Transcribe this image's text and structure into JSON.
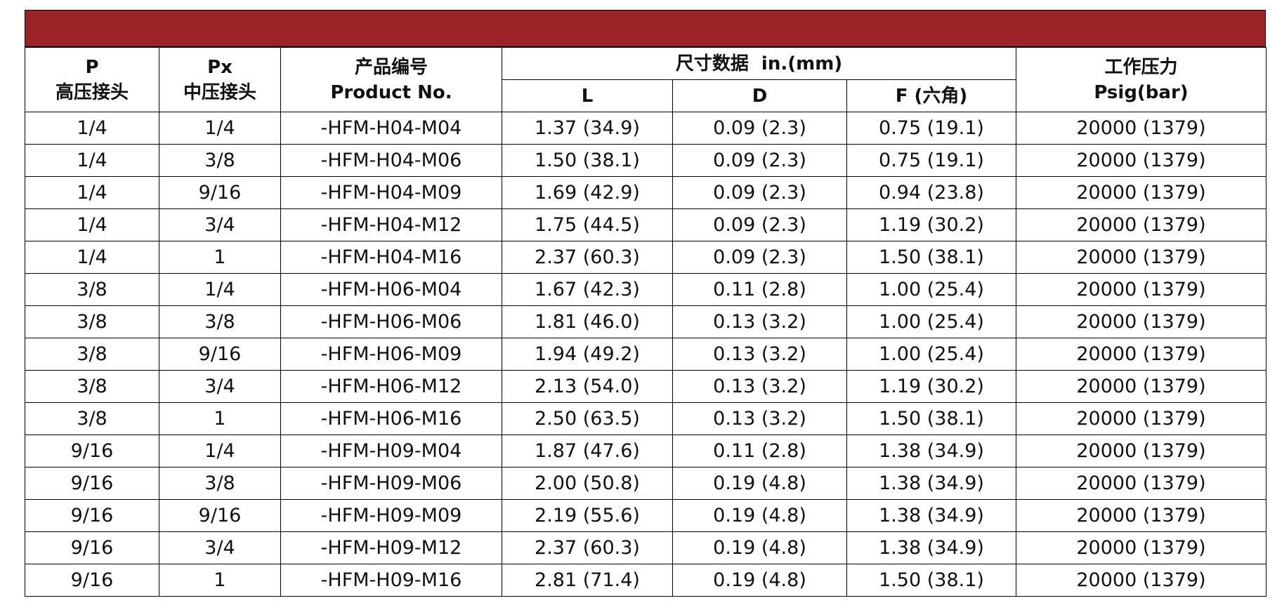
{
  "header": {
    "p": [
      "P",
      "高压接头"
    ],
    "px": [
      "Px",
      "中压接头"
    ],
    "product_no": [
      "产品编号",
      "Product No."
    ],
    "dimensions": "尺寸数据  in.(mm)",
    "dimension_columns": [
      "L",
      "D",
      "F (六角)"
    ],
    "pressure": [
      "工作压力",
      "Psig(bar)"
    ]
  },
  "rows": [
    [
      "1/4",
      "1/4",
      "-HFM-H04-M04",
      "1.37 (34.9)",
      "0.09 (2.3)",
      "0.75 (19.1)",
      "20000 (1379)"
    ],
    [
      "1/4",
      "3/8",
      "-HFM-H04-M06",
      "1.50 (38.1)",
      "0.09 (2.3)",
      "0.75 (19.1)",
      "20000 (1379)"
    ],
    [
      "1/4",
      "9/16",
      "-HFM-H04-M09",
      "1.69 (42.9)",
      "0.09 (2.3)",
      "0.94 (23.8)",
      "20000 (1379)"
    ],
    [
      "1/4",
      "3/4",
      "-HFM-H04-M12",
      "1.75 (44.5)",
      "0.09 (2.3)",
      "1.19 (30.2)",
      "20000 (1379)"
    ],
    [
      "1/4",
      "1",
      "-HFM-H04-M16",
      "2.37 (60.3)",
      "0.09 (2.3)",
      "1.50 (38.1)",
      "20000 (1379)"
    ],
    [
      "3/8",
      "1/4",
      "-HFM-H06-M04",
      "1.67 (42.3)",
      "0.11 (2.8)",
      "1.00 (25.4)",
      "20000 (1379)"
    ],
    [
      "3/8",
      "3/8",
      "-HFM-H06-M06",
      "1.81 (46.0)",
      "0.13 (3.2)",
      "1.00 (25.4)",
      "20000 (1379)"
    ],
    [
      "3/8",
      "9/16",
      "-HFM-H06-M09",
      "1.94 (49.2)",
      "0.13 (3.2)",
      "1.00 (25.4)",
      "20000 (1379)"
    ],
    [
      "3/8",
      "3/4",
      "-HFM-H06-M12",
      "2.13 (54.0)",
      "0.13 (3.2)",
      "1.19 (30.2)",
      "20000 (1379)"
    ],
    [
      "3/8",
      "1",
      "-HFM-H06-M16",
      "2.50 (63.5)",
      "0.13 (3.2)",
      "1.50 (38.1)",
      "20000 (1379)"
    ],
    [
      "9/16",
      "1/4",
      "-HFM-H09-M04",
      "1.87 (47.6)",
      "0.11 (2.8)",
      "1.38 (34.9)",
      "20000 (1379)"
    ],
    [
      "9/16",
      "3/8",
      "-HFM-H09-M06",
      "2.00 (50.8)",
      "0.19 (4.8)",
      "1.38 (34.9)",
      "20000 (1379)"
    ],
    [
      "9/16",
      "9/16",
      "-HFM-H09-M09",
      "2.19 (55.6)",
      "0.19 (4.8)",
      "1.38 (34.9)",
      "20000 (1379)"
    ],
    [
      "9/16",
      "3/4",
      "-HFM-H09-M12",
      "2.37 (60.3)",
      "0.19 (4.8)",
      "1.38 (34.9)",
      "20000 (1379)"
    ],
    [
      "9/16",
      "1",
      "-HFM-H09-M16",
      "2.81 (71.4)",
      "0.19 (4.8)",
      "1.50 (38.1)",
      "20000 (1379)"
    ]
  ]
}
